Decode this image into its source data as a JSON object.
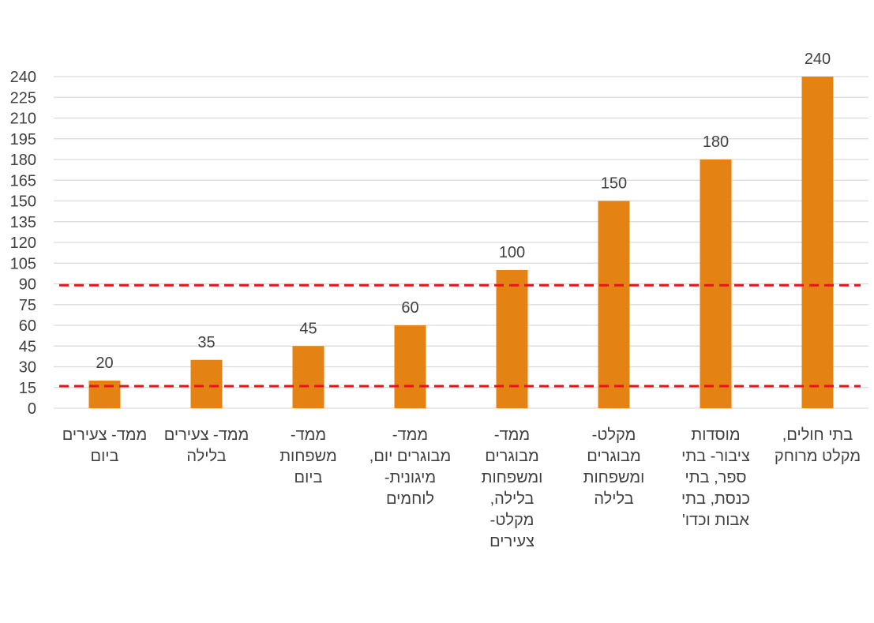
{
  "chart_data": {
    "type": "bar",
    "title": "",
    "xlabel": "",
    "ylabel": "",
    "ylim": [
      0,
      240
    ],
    "yticks": [
      0,
      15,
      30,
      45,
      60,
      75,
      90,
      105,
      120,
      135,
      150,
      165,
      180,
      195,
      210,
      225,
      240
    ],
    "grid": true,
    "legend": "none",
    "categories": [
      [
        "ממד- צעירים",
        "ביום"
      ],
      [
        "ממד- צעירים",
        "בלילה"
      ],
      [
        "ממד-",
        "משפחות",
        "ביום"
      ],
      [
        "ממד-",
        "מבוגרים יום,",
        "מיגונית-",
        "לוחמים"
      ],
      [
        "ממד-",
        "מבוגרים",
        "ומשפחות",
        "בלילה,",
        "מקלט-",
        "צעירים"
      ],
      [
        "מקלט-",
        "מבוגרים",
        "ומשפחות",
        "בלילה"
      ],
      [
        "מוסדות",
        "ציבור- בתי",
        "ספר, בתי",
        "כנסת, בתי",
        "אבות וכדו'"
      ],
      [
        "בתי חולים,",
        "מקלט מרוחק"
      ]
    ],
    "values": [
      20,
      35,
      45,
      60,
      100,
      150,
      180,
      240
    ],
    "data_labels": [
      "20",
      "35",
      "45",
      "60",
      "100",
      "150",
      "180",
      "240"
    ],
    "reference_lines": [
      {
        "value": 89,
        "style": "dashed"
      },
      {
        "value": 16,
        "style": "dashed"
      }
    ],
    "colors": {
      "bar": "#E48213",
      "grid": "#D9D9D9",
      "reference": "#E8141B",
      "text": "#404040"
    }
  }
}
